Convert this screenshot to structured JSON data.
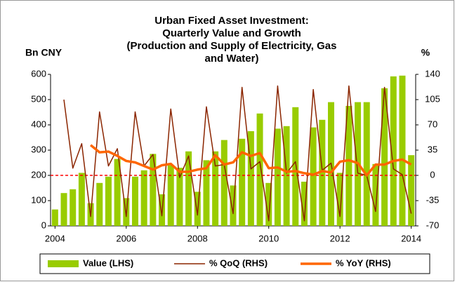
{
  "chart_data": {
    "type": "bar-line",
    "title": [
      "Urban Fixed Asset Investment:",
      "Quarterly Value and Growth",
      "(Production and Supply of Electricity, Gas",
      "and Water)"
    ],
    "y_label": "Bn CNY",
    "y2_label": "%",
    "x": [
      2004,
      2004.25,
      2004.5,
      2004.75,
      2005,
      2005.25,
      2005.5,
      2005.75,
      2006,
      2006.25,
      2006.5,
      2006.75,
      2007,
      2007.25,
      2007.5,
      2007.75,
      2008,
      2008.25,
      2008.5,
      2008.75,
      2009,
      2009.25,
      2009.5,
      2009.75,
      2010,
      2010.25,
      2010.5,
      2010.75,
      2011,
      2011.25,
      2011.5,
      2011.75,
      2012,
      2012.25,
      2012.5,
      2012.75,
      2013,
      2013.25,
      2013.5,
      2013.75,
      2014
    ],
    "series": [
      {
        "name": "Value (LHS)",
        "type": "bar",
        "color": "#99cc00",
        "values": [
          65,
          130,
          145,
          210,
          90,
          170,
          195,
          265,
          110,
          195,
          220,
          285,
          125,
          240,
          230,
          295,
          135,
          260,
          295,
          340,
          160,
          345,
          375,
          445,
          170,
          385,
          395,
          470,
          175,
          390,
          420,
          490,
          210,
          475,
          490,
          490,
          245,
          545,
          592,
          595,
          280
        ]
      },
      {
        "name": "% QoQ (RHS)",
        "type": "line",
        "axis": "y2",
        "color": "#8b2500",
        "width": 1.5,
        "values": [
          null,
          105,
          10,
          44,
          -57,
          88,
          13,
          37,
          -57,
          88,
          13,
          29,
          -56,
          92,
          -3,
          27,
          -55,
          95,
          13,
          15,
          -53,
          122,
          9,
          19,
          -63,
          124,
          3,
          19,
          -63,
          119,
          7,
          17,
          -57,
          124,
          3,
          0,
          -50,
          122,
          9,
          1,
          -53
        ]
      },
      {
        "name": "% YoY (RHS)",
        "type": "line",
        "axis": "y2",
        "color": "#ff6600",
        "width": 3.5,
        "values": [
          null,
          null,
          null,
          null,
          42,
          32,
          33,
          27,
          20,
          18,
          13,
          8,
          14,
          16,
          5,
          5,
          8,
          10,
          28,
          15,
          18,
          32,
          27,
          31,
          10,
          11,
          5,
          6,
          3,
          1,
          6,
          4,
          19,
          21,
          17,
          0,
          15,
          15,
          20,
          22,
          15
        ]
      }
    ],
    "xlim": [
      2003.875,
      2014.125
    ],
    "xticks": [
      2004,
      2006,
      2008,
      2010,
      2012,
      2014
    ],
    "ylim": [
      0,
      600
    ],
    "yticks": [
      0,
      100,
      200,
      300,
      400,
      500,
      600
    ],
    "y2lim": [
      -70,
      140
    ],
    "y2ticks": [
      -70,
      -35,
      0,
      35,
      70,
      105,
      140
    ],
    "y2_refline": 0,
    "refline_color": "#ff0000",
    "legend": "bottom"
  }
}
